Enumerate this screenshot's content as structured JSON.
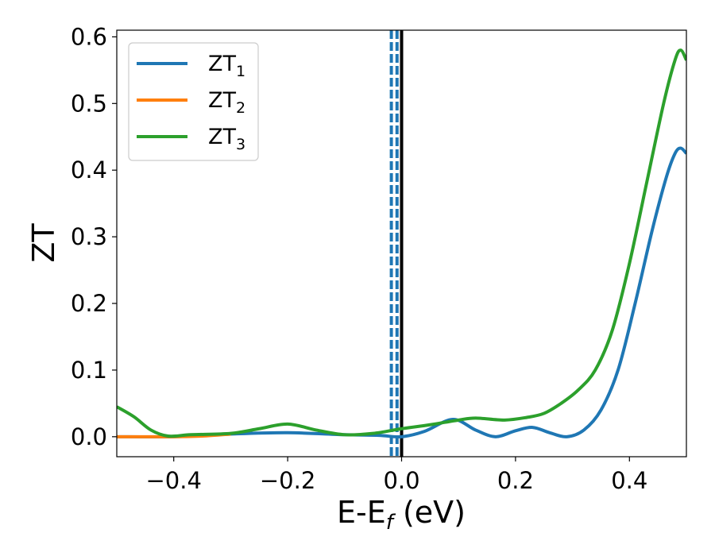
{
  "chart_data": {
    "type": "line",
    "xlabel": "E-E",
    "xlabel_sub": "f",
    "xlabel_unit": " (eV)",
    "ylabel": "ZT",
    "xlim": [
      -0.5,
      0.5
    ],
    "ylim": [
      -0.03,
      0.61
    ],
    "xticks": [
      -0.4,
      -0.2,
      0.0,
      0.2,
      0.4
    ],
    "xtick_labels": [
      "−0.4",
      "−0.2",
      "0.0",
      "0.2",
      "0.4"
    ],
    "yticks": [
      0.0,
      0.1,
      0.2,
      0.3,
      0.4,
      0.5,
      0.6
    ],
    "ytick_labels": [
      "0.0",
      "0.1",
      "0.2",
      "0.3",
      "0.4",
      "0.5",
      "0.6"
    ],
    "grid": false,
    "legend_position": "top-left",
    "vertical_lines": [
      {
        "x": 0.0,
        "style": "solid",
        "color": "#000000"
      },
      {
        "x": -0.018,
        "style": "dashed",
        "color": "#1f77b4"
      },
      {
        "x": -0.008,
        "style": "dashed",
        "color": "#1f77b4"
      }
    ],
    "series": [
      {
        "name": "ZT",
        "sub": "1",
        "color": "#1f77b4",
        "points": [
          [
            -0.5,
            0.0
          ],
          [
            -0.4,
            0.0
          ],
          [
            -0.3,
            0.004
          ],
          [
            -0.2,
            0.006
          ],
          [
            -0.1,
            0.003
          ],
          [
            -0.04,
            0.002
          ],
          [
            0.0,
            0.0
          ],
          [
            0.04,
            0.008
          ],
          [
            0.09,
            0.026
          ],
          [
            0.13,
            0.01
          ],
          [
            0.165,
            0.0
          ],
          [
            0.2,
            0.009
          ],
          [
            0.23,
            0.014
          ],
          [
            0.26,
            0.006
          ],
          [
            0.29,
            0.0
          ],
          [
            0.32,
            0.01
          ],
          [
            0.35,
            0.04
          ],
          [
            0.38,
            0.1
          ],
          [
            0.41,
            0.2
          ],
          [
            0.44,
            0.31
          ],
          [
            0.465,
            0.39
          ],
          [
            0.48,
            0.425
          ],
          [
            0.49,
            0.433
          ],
          [
            0.5,
            0.425
          ]
        ]
      },
      {
        "name": "ZT",
        "sub": "2",
        "color": "#ff7f0e",
        "points": [
          [
            -0.5,
            0.0
          ],
          [
            -0.45,
            0.0
          ],
          [
            -0.4,
            0.0
          ],
          [
            -0.35,
            0.001
          ],
          [
            -0.3,
            0.004
          ]
        ]
      },
      {
        "name": "ZT",
        "sub": "3",
        "color": "#2ca02c",
        "points": [
          [
            -0.5,
            0.045
          ],
          [
            -0.47,
            0.03
          ],
          [
            -0.44,
            0.01
          ],
          [
            -0.41,
            0.001
          ],
          [
            -0.37,
            0.003
          ],
          [
            -0.3,
            0.005
          ],
          [
            -0.25,
            0.012
          ],
          [
            -0.2,
            0.019
          ],
          [
            -0.15,
            0.01
          ],
          [
            -0.1,
            0.003
          ],
          [
            -0.05,
            0.005
          ],
          [
            0.0,
            0.012
          ],
          [
            0.05,
            0.018
          ],
          [
            0.1,
            0.025
          ],
          [
            0.13,
            0.028
          ],
          [
            0.18,
            0.025
          ],
          [
            0.22,
            0.029
          ],
          [
            0.25,
            0.035
          ],
          [
            0.28,
            0.05
          ],
          [
            0.31,
            0.07
          ],
          [
            0.34,
            0.1
          ],
          [
            0.37,
            0.16
          ],
          [
            0.4,
            0.26
          ],
          [
            0.43,
            0.38
          ],
          [
            0.46,
            0.5
          ],
          [
            0.48,
            0.565
          ],
          [
            0.49,
            0.58
          ],
          [
            0.5,
            0.565
          ]
        ]
      }
    ]
  }
}
